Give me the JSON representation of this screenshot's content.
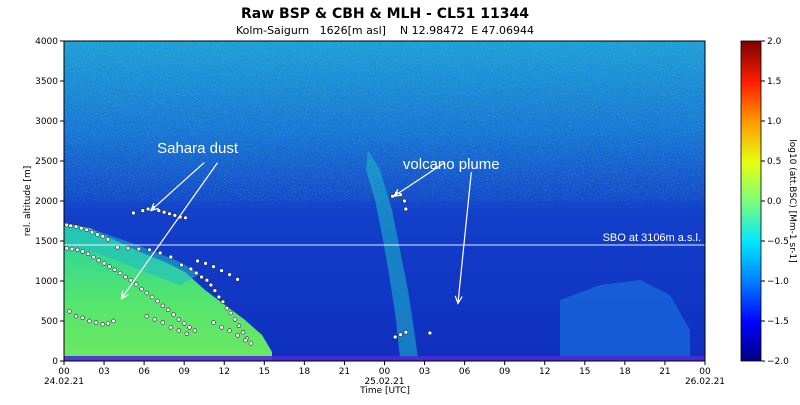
{
  "chart_data": {
    "type": "heatmap",
    "title": "Raw BSP & CBH & MLH - CL51 11344",
    "subtitle": "Kolm-Saigurn   1626[m asl]    N 12.98472  E 47.06944",
    "xlabel": "Time [UTC]",
    "ylabel": "rel. altitude [m]",
    "x_hours_range": [
      0,
      48
    ],
    "x_ticks": [
      {
        "hour": 0,
        "label": "00"
      },
      {
        "hour": 3,
        "label": "03"
      },
      {
        "hour": 6,
        "label": "06"
      },
      {
        "hour": 9,
        "label": "09"
      },
      {
        "hour": 12,
        "label": "12"
      },
      {
        "hour": 15,
        "label": "15"
      },
      {
        "hour": 18,
        "label": "18"
      },
      {
        "hour": 21,
        "label": "21"
      },
      {
        "hour": 24,
        "label": "00"
      },
      {
        "hour": 27,
        "label": "03"
      },
      {
        "hour": 30,
        "label": "06"
      },
      {
        "hour": 33,
        "label": "09"
      },
      {
        "hour": 36,
        "label": "12"
      },
      {
        "hour": 39,
        "label": "15"
      },
      {
        "hour": 42,
        "label": "18"
      },
      {
        "hour": 45,
        "label": "21"
      },
      {
        "hour": 48,
        "label": "00"
      }
    ],
    "date_labels": [
      {
        "hour": 0,
        "label": "24.02.21"
      },
      {
        "hour": 24,
        "label": "25.02.21"
      },
      {
        "hour": 48,
        "label": "26.02.21"
      }
    ],
    "ylim": [
      0,
      4000
    ],
    "y_ticks": [
      0,
      500,
      1000,
      1500,
      2000,
      2500,
      3000,
      3500,
      4000
    ],
    "colorbar": {
      "label": "log10 (att.BSC) [Mm-1 sr-1]",
      "range": [
        -2.0,
        2.0
      ],
      "ticks": [
        "2.0",
        "1.5",
        "1.0",
        "0.5",
        "0.0",
        "−0.5",
        "−1.0",
        "−1.5",
        "−2.0"
      ],
      "colormap": "jet"
    },
    "reference_line": {
      "altitude": 1450,
      "label": "SBO at 3106m a.s.l.",
      "color": "#ffffff"
    },
    "annotations": [
      {
        "text": "Sahara dust",
        "hour": 10,
        "altitude": 2600
      },
      {
        "text": "volcano plume",
        "hour": 29,
        "altitude": 2400
      }
    ],
    "arrows": [
      {
        "from": [
          10.5,
          2480
        ],
        "to": [
          6.5,
          1880
        ]
      },
      {
        "from": [
          11.5,
          2480
        ],
        "to": [
          4.3,
          780
        ]
      },
      {
        "from": [
          28.5,
          2480
        ],
        "to": [
          24.7,
          2060
        ]
      },
      {
        "from": [
          30.5,
          2360
        ],
        "to": [
          29.5,
          720
        ]
      }
    ],
    "cbh_points_day1": [
      [
        0.2,
        1700
      ],
      [
        0.5,
        1690
      ],
      [
        0.9,
        1680
      ],
      [
        1.3,
        1660
      ],
      [
        1.7,
        1640
      ],
      [
        2.1,
        1610
      ],
      [
        2.5,
        1580
      ],
      [
        2.9,
        1560
      ],
      [
        3.3,
        1520
      ],
      [
        0.2,
        1410
      ],
      [
        0.6,
        1400
      ],
      [
        1.0,
        1390
      ],
      [
        1.4,
        1370
      ],
      [
        1.8,
        1340
      ],
      [
        2.2,
        1300
      ],
      [
        2.6,
        1260
      ],
      [
        3.0,
        1220
      ],
      [
        3.4,
        1180
      ],
      [
        3.8,
        1140
      ],
      [
        4.2,
        1100
      ],
      [
        4.6,
        1050
      ],
      [
        5.0,
        1010
      ],
      [
        5.4,
        960
      ],
      [
        5.8,
        900
      ],
      [
        6.2,
        850
      ],
      [
        6.6,
        800
      ],
      [
        7.0,
        750
      ],
      [
        7.4,
        690
      ],
      [
        7.8,
        640
      ],
      [
        8.2,
        580
      ],
      [
        8.6,
        520
      ],
      [
        9.0,
        470
      ],
      [
        9.4,
        420
      ],
      [
        9.8,
        380
      ],
      [
        4.0,
        1420
      ],
      [
        4.8,
        1410
      ],
      [
        5.6,
        1400
      ],
      [
        6.4,
        1390
      ],
      [
        7.2,
        1350
      ],
      [
        8.0,
        1300
      ],
      [
        8.8,
        1200
      ],
      [
        5.9,
        1880
      ],
      [
        6.3,
        1900
      ],
      [
        6.7,
        1920
      ],
      [
        7.1,
        1880
      ],
      [
        7.5,
        1860
      ],
      [
        7.9,
        1840
      ],
      [
        8.3,
        1820
      ],
      [
        8.7,
        1800
      ],
      [
        9.1,
        1790
      ],
      [
        5.2,
        1850
      ],
      [
        9.5,
        1150
      ],
      [
        9.9,
        1100
      ],
      [
        10.3,
        1050
      ],
      [
        10.7,
        1010
      ],
      [
        11.0,
        950
      ],
      [
        11.3,
        880
      ],
      [
        11.6,
        800
      ],
      [
        11.9,
        740
      ],
      [
        12.2,
        660
      ],
      [
        12.5,
        600
      ],
      [
        12.8,
        520
      ],
      [
        13.1,
        440
      ],
      [
        13.4,
        360
      ],
      [
        13.7,
        280
      ],
      [
        14.0,
        220
      ],
      [
        10.0,
        1250
      ],
      [
        10.6,
        1220
      ],
      [
        11.2,
        1180
      ],
      [
        11.8,
        1130
      ],
      [
        12.4,
        1080
      ],
      [
        13.0,
        1020
      ],
      [
        0.4,
        620
      ],
      [
        0.9,
        560
      ],
      [
        1.4,
        540
      ],
      [
        1.9,
        500
      ],
      [
        2.4,
        480
      ],
      [
        2.9,
        460
      ],
      [
        3.3,
        470
      ],
      [
        3.7,
        500
      ],
      [
        6.2,
        560
      ],
      [
        6.8,
        520
      ],
      [
        7.4,
        480
      ],
      [
        8.0,
        420
      ],
      [
        8.6,
        380
      ],
      [
        9.2,
        340
      ],
      [
        11.2,
        480
      ],
      [
        11.8,
        420
      ],
      [
        12.4,
        380
      ],
      [
        13.0,
        320
      ],
      [
        13.6,
        260
      ]
    ],
    "cbh_points_day2": [
      [
        24.6,
        2060
      ],
      [
        24.9,
        2100
      ],
      [
        25.2,
        2080
      ],
      [
        25.6,
        1900
      ],
      [
        25.5,
        2000
      ],
      [
        24.8,
        300
      ],
      [
        25.2,
        330
      ],
      [
        25.6,
        360
      ],
      [
        27.4,
        350
      ]
    ]
  }
}
